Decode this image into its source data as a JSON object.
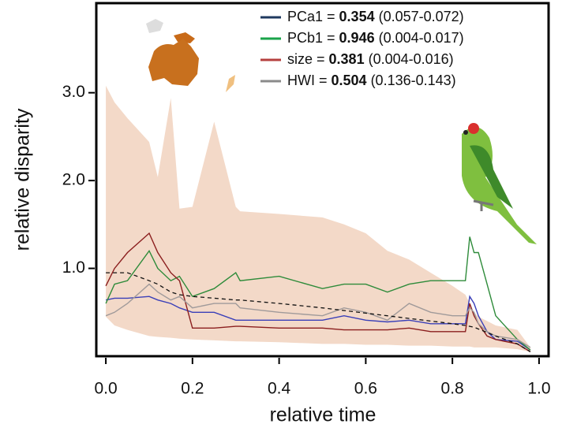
{
  "chart_data": {
    "type": "line",
    "xlabel": "relative time",
    "ylabel": "relative disparity",
    "xlim": [
      -0.022,
      1.022
    ],
    "ylim": [
      0,
      4.02
    ],
    "xticks": [
      {
        "value": 0,
        "label": "0.0"
      },
      {
        "value": 0.2,
        "label": "0.2"
      },
      {
        "value": 0.4,
        "label": "0.4"
      },
      {
        "value": 0.6,
        "label": "0.6"
      },
      {
        "value": 0.8,
        "label": "0.8"
      },
      {
        "value": 1,
        "label": "1.0"
      }
    ],
    "yticks": [
      {
        "value": 1,
        "label": "1.0"
      },
      {
        "value": 2,
        "label": "2.0"
      },
      {
        "value": 3,
        "label": "3.0"
      }
    ],
    "legend_position": "upper right",
    "x": [
      0,
      0.02,
      0.05,
      0.1,
      0.12,
      0.15,
      0.17,
      0.2,
      0.25,
      0.3,
      0.31,
      0.4,
      0.5,
      0.55,
      0.6,
      0.65,
      0.7,
      0.75,
      0.8,
      0.83,
      0.84,
      0.85,
      0.86,
      0.88,
      0.9,
      0.95,
      0.98
    ],
    "envelope": {
      "color": "#f3d9c8",
      "upper": [
        3.08,
        2.89,
        2.71,
        2.44,
        2.04,
        2.94,
        1.68,
        1.7,
        2.67,
        1.7,
        1.65,
        1.62,
        1.58,
        1.5,
        1.4,
        1.2,
        1.1,
        0.95,
        0.8,
        0.7,
        0.6,
        0.5,
        0.45,
        0.4,
        0.35,
        0.3,
        0.1
      ],
      "lower": [
        0.45,
        0.35,
        0.3,
        0.23,
        0.22,
        0.21,
        0.2,
        0.19,
        0.18,
        0.17,
        0.17,
        0.16,
        0.14,
        0.14,
        0.13,
        0.13,
        0.12,
        0.12,
        0.11,
        0.11,
        0.11,
        0.1,
        0.1,
        0.1,
        0.1,
        0.08,
        0.05
      ]
    },
    "mean_line": {
      "color": "#111111",
      "values": [
        0.95,
        0.95,
        0.95,
        0.86,
        0.82,
        0.73,
        0.7,
        0.68,
        0.66,
        0.64,
        0.64,
        0.6,
        0.55,
        0.52,
        0.49,
        0.46,
        0.43,
        0.4,
        0.37,
        0.35,
        0.34,
        0.33,
        0.31,
        0.27,
        0.23,
        0.14,
        0.05
      ]
    },
    "series": [
      {
        "name": "PCa1 =",
        "stat": 0.354,
        "range": "(0.057-0.072)",
        "color": "#3a3fb8",
        "legend_color": "#1f3a5f",
        "values": [
          0.64,
          0.66,
          0.66,
          0.68,
          0.64,
          0.6,
          0.55,
          0.5,
          0.5,
          0.41,
          0.41,
          0.41,
          0.41,
          0.46,
          0.41,
          0.39,
          0.41,
          0.37,
          0.37,
          0.37,
          0.68,
          0.6,
          0.46,
          0.28,
          0.19,
          0.17,
          0.07
        ]
      },
      {
        "name": "PCb1 =",
        "stat": 0.946,
        "range": "(0.004-0.017)",
        "color": "#2e8b3a",
        "legend_color": "#1aa34a",
        "values": [
          0.6,
          0.82,
          0.86,
          1.2,
          1.0,
          0.86,
          0.91,
          0.68,
          0.77,
          0.95,
          0.86,
          0.91,
          0.77,
          0.82,
          0.82,
          0.73,
          0.82,
          0.86,
          0.86,
          0.86,
          1.36,
          1.18,
          1.18,
          0.82,
          0.46,
          0.19,
          0.07
        ]
      },
      {
        "name": "size =",
        "stat": 0.381,
        "range": "(0.004-0.016)",
        "color": "#8b1e1e",
        "legend_color": "#b5403f",
        "values": [
          0.8,
          1.0,
          1.18,
          1.4,
          1.18,
          0.95,
          0.86,
          0.32,
          0.32,
          0.34,
          0.34,
          0.32,
          0.32,
          0.3,
          0.3,
          0.3,
          0.32,
          0.28,
          0.28,
          0.28,
          0.6,
          0.46,
          0.37,
          0.23,
          0.19,
          0.14,
          0.05
        ]
      },
      {
        "name": "HWI =",
        "stat": 0.504,
        "range": "(0.136-0.143)",
        "color": "#a09a9a",
        "legend_color": "#8a8a8a",
        "values": [
          0.46,
          0.5,
          0.6,
          0.82,
          0.73,
          0.64,
          0.68,
          0.55,
          0.6,
          0.6,
          0.55,
          0.5,
          0.46,
          0.55,
          0.5,
          0.41,
          0.6,
          0.5,
          0.46,
          0.46,
          0.55,
          0.5,
          0.37,
          0.28,
          0.23,
          0.19,
          0.1
        ]
      }
    ]
  }
}
